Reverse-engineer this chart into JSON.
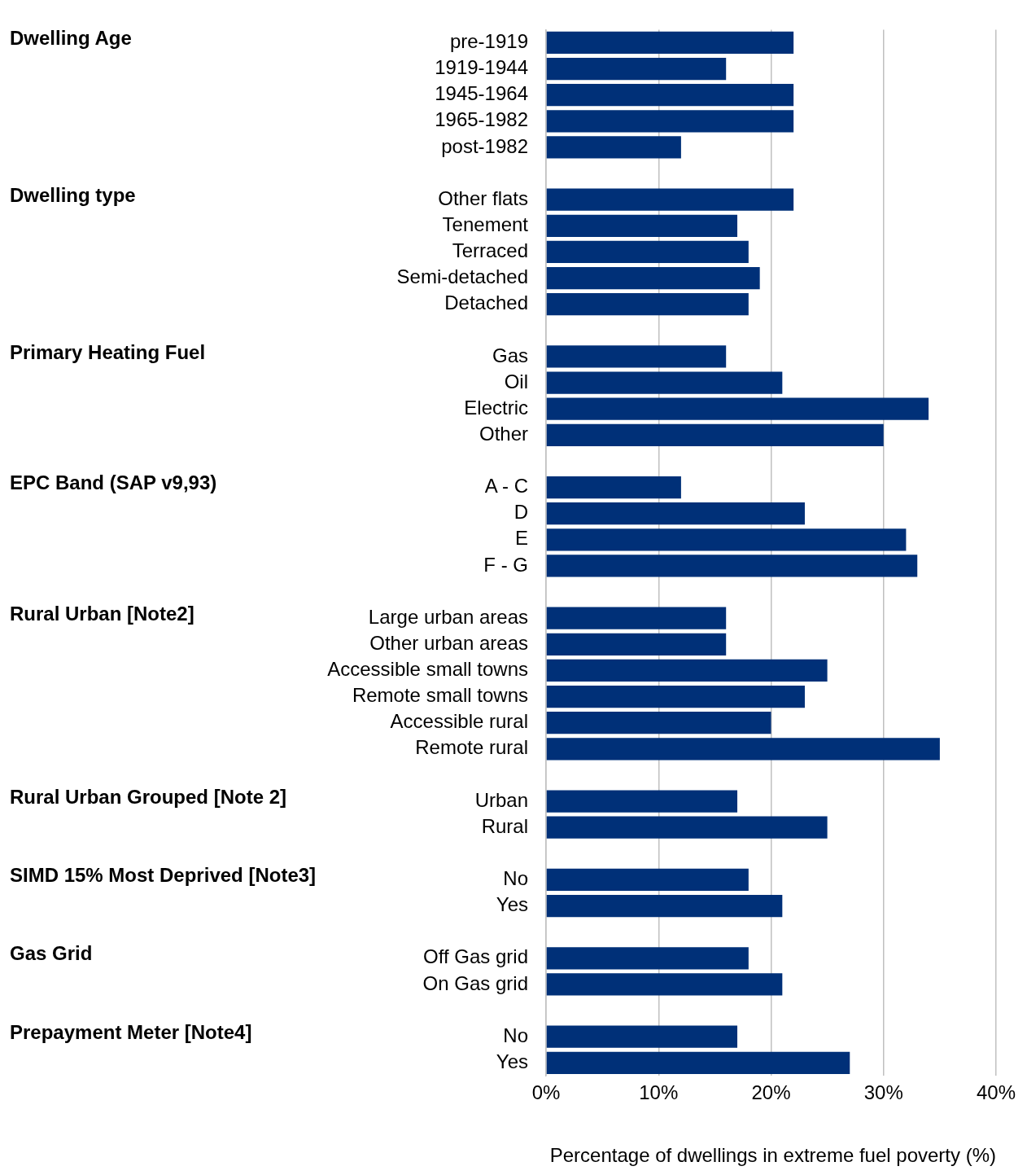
{
  "chart_data": {
    "type": "bar",
    "orientation": "horizontal",
    "xlabel": "Percentage of dwellings in extreme fuel poverty (%)",
    "categories": [
      "pre-1919",
      "1919-1944",
      "1945-1964",
      "1965-1982",
      "post-1982",
      null,
      "Other flats",
      "Tenement",
      "Terraced",
      "Semi-detached",
      "Detached",
      null,
      "Gas",
      "Oil",
      "Electric",
      "Other",
      null,
      "A - C",
      "D",
      "E",
      "F - G",
      null,
      "Large urban areas",
      "Other urban areas",
      "Accessible small towns",
      "Remote small towns",
      "Accessible rural",
      "Remote rural",
      null,
      "Urban",
      "Rural",
      null,
      "No",
      "Yes",
      null,
      "Off Gas grid",
      "On Gas grid",
      null,
      "No",
      "Yes"
    ],
    "values": [
      22,
      16,
      22,
      22,
      12,
      null,
      22,
      17,
      18,
      19,
      18,
      null,
      16,
      21,
      34,
      30,
      null,
      12,
      23,
      32,
      33,
      null,
      16,
      16,
      25,
      23,
      20,
      35,
      null,
      17,
      25,
      null,
      18,
      21,
      null,
      18,
      21,
      null,
      17,
      27
    ],
    "color": "#003078",
    "xlim": [
      0,
      40
    ],
    "xticks": [
      {
        "value": 0,
        "label": "0%"
      },
      {
        "value": 10,
        "label": "10%"
      },
      {
        "value": 20,
        "label": "20%"
      },
      {
        "value": 30,
        "label": "30%"
      },
      {
        "value": 40,
        "label": "40%"
      }
    ],
    "grid": "x",
    "legend": false,
    "annotations": [
      "Dwelling Age",
      "Dwelling type",
      "Primary Heating Fuel",
      "EPC Band (SAP v9,93)",
      "Rural Urban [Note2]",
      "Rural Urban Grouped [Note 2]",
      "SIMD 15% Most Deprived [Note3]",
      "Gas Grid",
      "Prepayment Meter [Note4]"
    ]
  }
}
